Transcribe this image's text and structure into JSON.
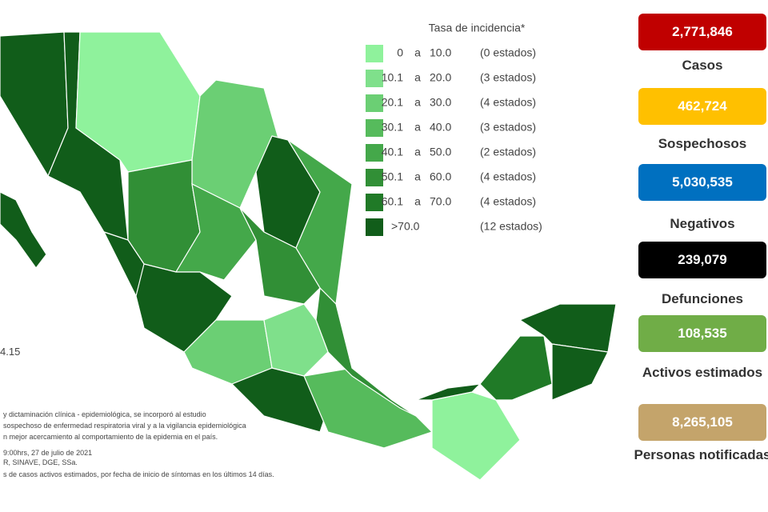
{
  "legend": {
    "title": "Tasa de incidencia*",
    "items": [
      {
        "from": "0",
        "connector": "a",
        "to": "10.0",
        "count": "(0 estados)",
        "color": "#8ff29c"
      },
      {
        "from": "10.1",
        "connector": "a",
        "to": "20.0",
        "count": "(3 estados)",
        "color": "#7fe08b"
      },
      {
        "from": "20.1",
        "connector": "a",
        "to": "30.0",
        "count": "(4 estados)",
        "color": "#6bcf74"
      },
      {
        "from": "30.1",
        "connector": "a",
        "to": "40.0",
        "count": "(3 estados)",
        "color": "#56bb5c"
      },
      {
        "from": "40.1",
        "connector": "a",
        "to": "50.0",
        "count": "(2 estados)",
        "color": "#44a84a"
      },
      {
        "from": "50.1",
        "connector": "a",
        "to": "60.0",
        "count": "(4 estados)",
        "color": "#318f36"
      },
      {
        "from": "60.1",
        "connector": "a",
        "to": "70.0",
        "count": "(4 estados)",
        "color": "#207a27"
      },
      {
        "from": ">70.0",
        "count": "(12 estados)",
        "color": "#115d1a"
      }
    ]
  },
  "side_text": "4.15",
  "stats": [
    {
      "value": "2,771,846",
      "label": "Casos",
      "color": "#c00000"
    },
    {
      "value": "462,724",
      "label": "Sospechosos",
      "color": "#ffc000"
    },
    {
      "value": "5,030,535",
      "label": "Negativos",
      "color": "#0070c0"
    },
    {
      "value": "239,079",
      "label": "Defunciones",
      "color": "#000000"
    },
    {
      "value": "108,535",
      "label": "Activos estimados",
      "color": "#70ad47"
    },
    {
      "value": "8,265,105",
      "label": "Personas notificadas",
      "color": "#c4a46b"
    }
  ],
  "notes": [
    "y dictaminación clínica - epidemiológica, se incorporó al estudio",
    "sospechoso de enfermedad respiratoria viral y a la vigilancia epidemiológica",
    "n mejor acercamiento al comportamiento de la epidemia en el país.",
    "9:00hrs, 27 de julio de 2021",
    "R, SINAVE, DGE, SSa.",
    "s de casos activos estimados, por fecha de inicio de síntomas en los últimos 14 días."
  ]
}
